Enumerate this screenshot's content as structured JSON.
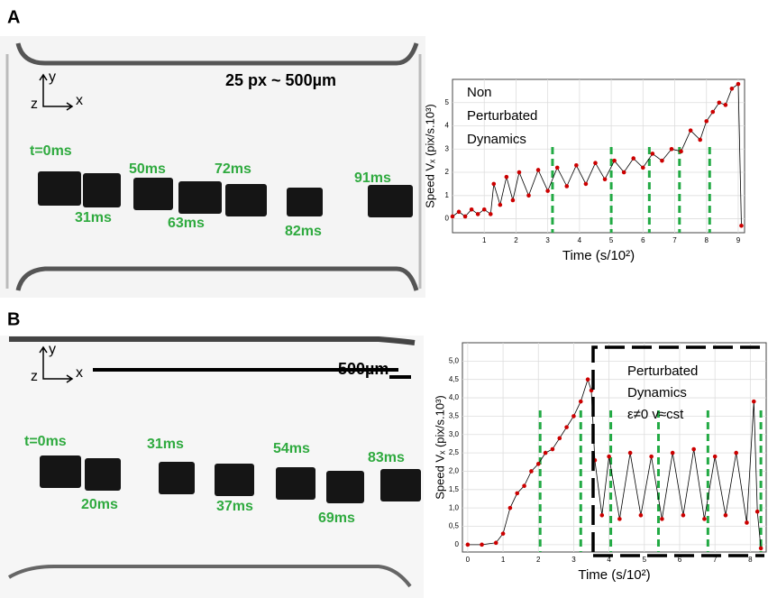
{
  "panels": [
    {
      "label": "A",
      "scale_bar": "25 px ~ 500µm",
      "axis_glyphs": [
        "x",
        "y",
        "z"
      ],
      "time_labels": [
        "t=0ms",
        "31ms",
        "50ms",
        "63ms",
        "72ms",
        "82ms",
        "91ms"
      ]
    },
    {
      "label": "B",
      "scale_bar": "500µm",
      "axis_glyphs": [
        "x",
        "y",
        "z"
      ],
      "time_labels": [
        "t=0ms",
        "20ms",
        "31ms",
        "37ms",
        "54ms",
        "69ms",
        "83ms"
      ]
    }
  ],
  "chart_data": [
    {
      "type": "line",
      "annotation": [
        "Non",
        "Perturbated",
        "Dynamics"
      ],
      "xlabel": "Time (s/10²)",
      "ylabel": "Speed Vₓ (pix/s.10³)",
      "xlim": [
        0,
        9.2
      ],
      "ylim": [
        -0.6,
        6
      ],
      "xticks": [
        1,
        2,
        3,
        4,
        5,
        6,
        7,
        8,
        9
      ],
      "yticks": [
        0,
        1,
        2,
        3,
        4,
        5
      ],
      "grid": true,
      "line_color": "#000000",
      "marker_color": "#cc0000",
      "vlines": [
        3.15,
        5.0,
        6.2,
        7.15,
        8.1
      ],
      "vline_color": "#22aa44",
      "x": [
        0,
        0.2,
        0.4,
        0.6,
        0.8,
        1.0,
        1.2,
        1.3,
        1.5,
        1.7,
        1.9,
        2.1,
        2.4,
        2.7,
        3.0,
        3.3,
        3.6,
        3.9,
        4.2,
        4.5,
        4.8,
        5.1,
        5.4,
        5.7,
        6.0,
        6.3,
        6.6,
        6.9,
        7.2,
        7.5,
        7.8,
        8.0,
        8.2,
        8.4,
        8.6,
        8.8,
        9.0,
        9.1
      ],
      "y": [
        0.1,
        0.3,
        0.1,
        0.4,
        0.2,
        0.4,
        0.2,
        1.5,
        0.6,
        1.8,
        0.8,
        2.0,
        1.0,
        2.1,
        1.2,
        2.2,
        1.4,
        2.3,
        1.5,
        2.4,
        1.7,
        2.5,
        2.0,
        2.6,
        2.2,
        2.8,
        2.5,
        3.0,
        2.9,
        3.8,
        3.4,
        4.2,
        4.6,
        5.0,
        4.9,
        5.6,
        5.8,
        -0.3
      ]
    },
    {
      "type": "line",
      "annotation": [
        "Perturbated",
        "Dynamics",
        "ε≠0  v≈cst"
      ],
      "xlabel": "Time (s/10²)",
      "ylabel": "Speed Vₓ (pix/s.10³)",
      "xlim": [
        -0.15,
        8.45
      ],
      "ylim": [
        -0.2,
        5.5
      ],
      "xticks": [
        0,
        1,
        2,
        3,
        4,
        5,
        6,
        7,
        8
      ],
      "yticks": [
        0,
        {
          "value": 0.5,
          "label": "0,5"
        },
        {
          "value": 1.0,
          "label": "1,0"
        },
        {
          "value": 1.5,
          "label": "1,5"
        },
        {
          "value": 2.0,
          "label": "2,0"
        },
        {
          "value": 2.5,
          "label": "2,5"
        },
        {
          "value": 3.0,
          "label": "3,0"
        },
        {
          "value": 3.5,
          "label": "3,5"
        },
        {
          "value": 4.0,
          "label": "4,0"
        },
        {
          "value": 4.5,
          "label": "4,5"
        },
        {
          "value": 5.0,
          "label": "5,0"
        }
      ],
      "grid": true,
      "line_color": "#000000",
      "marker_color": "#cc0000",
      "vlines": [
        2.05,
        3.2,
        4.05,
        5.4,
        6.8,
        8.3
      ],
      "vline_color": "#22aa44",
      "box_start_x": 3.55,
      "x": [
        0,
        0.4,
        0.8,
        1.0,
        1.2,
        1.4,
        1.6,
        1.8,
        2.0,
        2.2,
        2.4,
        2.6,
        2.8,
        3.0,
        3.2,
        3.4,
        3.5,
        3.6,
        3.8,
        4.0,
        4.3,
        4.6,
        4.9,
        5.2,
        5.5,
        5.8,
        6.1,
        6.4,
        6.7,
        7.0,
        7.3,
        7.6,
        7.9,
        8.1,
        8.2,
        8.3
      ],
      "y": [
        0,
        0,
        0.05,
        0.3,
        1.0,
        1.4,
        1.6,
        2.0,
        2.2,
        2.5,
        2.6,
        2.9,
        3.2,
        3.5,
        3.9,
        4.5,
        4.2,
        2.3,
        0.8,
        2.4,
        0.7,
        2.5,
        0.8,
        2.4,
        0.7,
        2.5,
        0.8,
        2.6,
        0.7,
        2.4,
        0.8,
        2.5,
        0.6,
        3.9,
        0.9,
        -0.1
      ]
    }
  ]
}
